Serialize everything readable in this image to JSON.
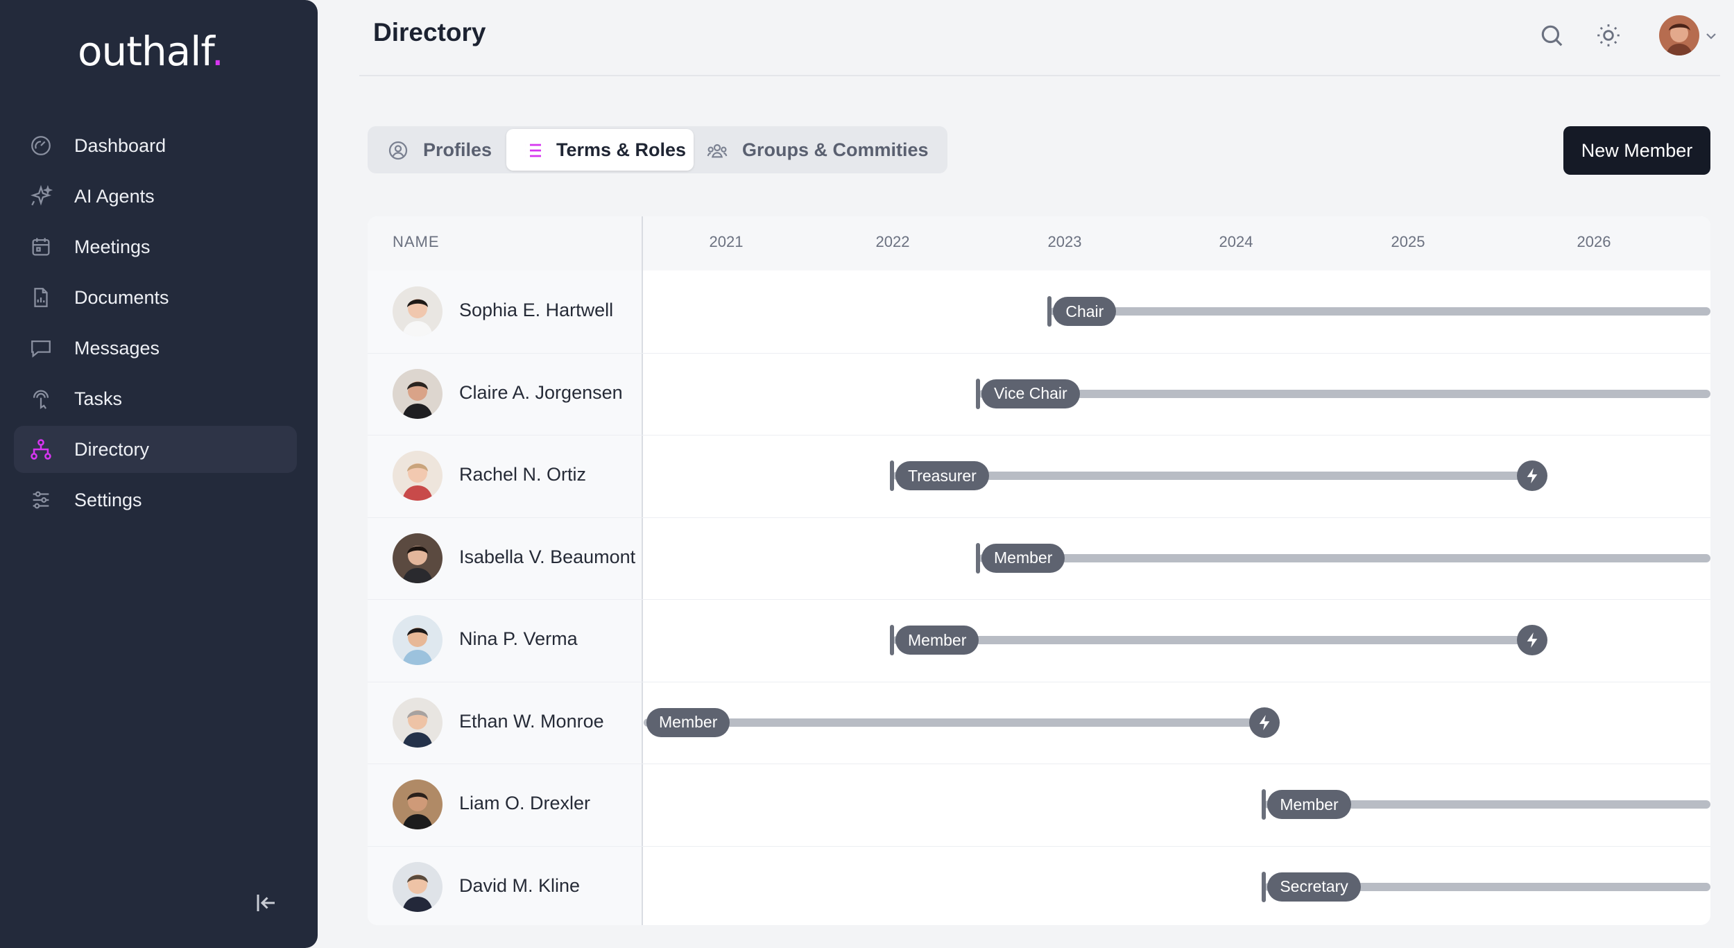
{
  "app": {
    "logo_text": "outhalf",
    "logo_dot": "."
  },
  "sidebar": {
    "items": [
      {
        "label": "Dashboard",
        "icon": "dashboard-icon",
        "active": false
      },
      {
        "label": "AI Agents",
        "icon": "sparkles-icon",
        "active": false
      },
      {
        "label": "Meetings",
        "icon": "calendar-icon",
        "active": false
      },
      {
        "label": "Documents",
        "icon": "document-icon",
        "active": false
      },
      {
        "label": "Messages",
        "icon": "chat-icon",
        "active": false
      },
      {
        "label": "Tasks",
        "icon": "touch-icon",
        "active": false
      },
      {
        "label": "Directory",
        "icon": "org-chart-icon",
        "active": true
      },
      {
        "label": "Settings",
        "icon": "sliders-icon",
        "active": false
      }
    ]
  },
  "header": {
    "title": "Directory"
  },
  "tabs": [
    {
      "label": "Profiles",
      "icon": "user-circle-icon",
      "active": false
    },
    {
      "label": "Terms & Roles",
      "icon": "list-icon",
      "active": true
    },
    {
      "label": "Groups & Commities",
      "icon": "group-icon",
      "active": false
    }
  ],
  "actions": {
    "new_member": "New Member"
  },
  "timeline": {
    "name_header": "NAME",
    "years": [
      "2021",
      "2022",
      "2023",
      "2024",
      "2025",
      "2026"
    ],
    "rows": [
      {
        "name": "Sophia E. Hartwell",
        "role": "Chair",
        "start": "2023-06",
        "end": null
      },
      {
        "name": "Claire A. Jorgensen",
        "role": "Vice Chair",
        "start": "2023-01",
        "end": null
      },
      {
        "name": "Rachel N. Ortiz",
        "role": "Treasurer",
        "start": "2022-07",
        "end": "2026-03"
      },
      {
        "name": "Isabella V. Beaumont",
        "role": "Member",
        "start": "2023-01",
        "end": null
      },
      {
        "name": "Nina P. Verma",
        "role": "Member",
        "start": "2022-07",
        "end": "2026-03"
      },
      {
        "name": "Ethan W. Monroe",
        "role": "Member",
        "start": "2020-07",
        "end": "2024-09"
      },
      {
        "name": "Liam O. Drexler",
        "role": "Member",
        "start": "2024-09",
        "end": null
      },
      {
        "name": "David M. Kline",
        "role": "Secretary",
        "start": "2024-09",
        "end": null
      }
    ]
  },
  "colors": {
    "sidebar_bg": "#232a3b",
    "accent": "#d636f0",
    "pill_bg": "#5e6370",
    "bar": "#b8bcc4"
  }
}
